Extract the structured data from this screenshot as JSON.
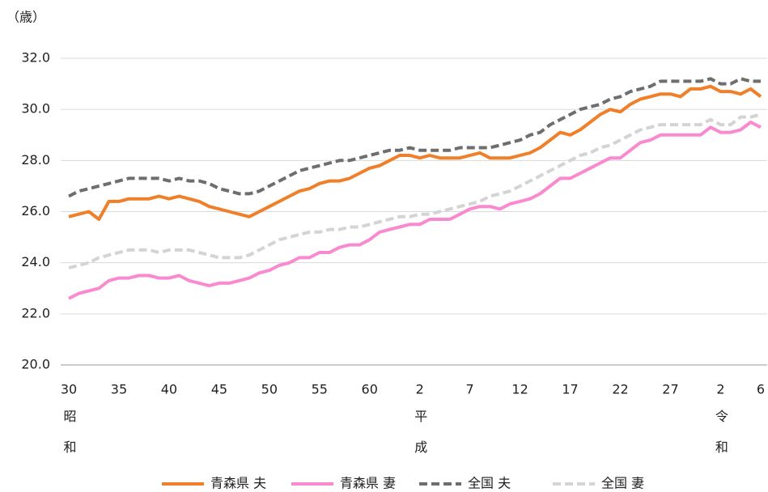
{
  "chart_data": {
    "type": "line",
    "y_unit": "（歳）",
    "categories": [
      "30",
      null,
      null,
      null,
      null,
      "35",
      null,
      null,
      null,
      null,
      "40",
      null,
      null,
      null,
      null,
      "45",
      null,
      null,
      null,
      null,
      "50",
      null,
      null,
      null,
      null,
      "55",
      null,
      null,
      null,
      null,
      "60",
      null,
      null,
      null,
      null,
      "2",
      null,
      null,
      null,
      null,
      "7",
      null,
      null,
      null,
      null,
      "12",
      null,
      null,
      null,
      null,
      "17",
      null,
      null,
      null,
      null,
      "22",
      null,
      null,
      null,
      null,
      "27",
      null,
      null,
      null,
      null,
      "2",
      null,
      null,
      null,
      "6"
    ],
    "era_labels": [
      "昭和",
      null,
      null,
      null,
      null,
      null,
      null,
      null,
      null,
      null,
      null,
      null,
      null,
      null,
      null,
      null,
      null,
      null,
      null,
      null,
      null,
      null,
      null,
      null,
      null,
      null,
      null,
      null,
      null,
      null,
      null,
      null,
      null,
      null,
      null,
      "平成",
      null,
      null,
      null,
      null,
      null,
      null,
      null,
      null,
      null,
      null,
      null,
      null,
      null,
      null,
      null,
      null,
      null,
      null,
      null,
      null,
      null,
      null,
      null,
      null,
      null,
      null,
      null,
      null,
      null,
      "令和",
      null,
      null,
      null,
      null
    ],
    "series": [
      {
        "name": "青森県 夫",
        "color": "#f07f2a",
        "dash": false,
        "values": [
          25.8,
          25.9,
          26.0,
          25.7,
          26.4,
          26.4,
          26.5,
          26.5,
          26.5,
          26.6,
          26.5,
          26.6,
          26.5,
          26.4,
          26.2,
          26.1,
          26.0,
          25.9,
          25.8,
          26.0,
          26.2,
          26.4,
          26.6,
          26.8,
          26.9,
          27.1,
          27.2,
          27.2,
          27.3,
          27.5,
          27.7,
          27.8,
          28.0,
          28.2,
          28.2,
          28.1,
          28.2,
          28.1,
          28.1,
          28.1,
          28.2,
          28.3,
          28.1,
          28.1,
          28.1,
          28.2,
          28.3,
          28.5,
          28.8,
          29.1,
          29.0,
          29.2,
          29.5,
          29.8,
          30.0,
          29.9,
          30.2,
          30.4,
          30.5,
          30.6,
          30.6,
          30.5,
          30.8,
          30.8,
          30.9,
          30.7,
          30.7,
          30.6,
          30.8,
          30.5
        ]
      },
      {
        "name": "青森県 妻",
        "color": "#f98ad0",
        "dash": false,
        "values": [
          22.6,
          22.8,
          22.9,
          23.0,
          23.3,
          23.4,
          23.4,
          23.5,
          23.5,
          23.4,
          23.4,
          23.5,
          23.3,
          23.2,
          23.1,
          23.2,
          23.2,
          23.3,
          23.4,
          23.6,
          23.7,
          23.9,
          24.0,
          24.2,
          24.2,
          24.4,
          24.4,
          24.6,
          24.7,
          24.7,
          24.9,
          25.2,
          25.3,
          25.4,
          25.5,
          25.5,
          25.7,
          25.7,
          25.7,
          25.9,
          26.1,
          26.2,
          26.2,
          26.1,
          26.3,
          26.4,
          26.5,
          26.7,
          27.0,
          27.3,
          27.3,
          27.5,
          27.7,
          27.9,
          28.1,
          28.1,
          28.4,
          28.7,
          28.8,
          29.0,
          29.0,
          29.0,
          29.0,
          29.0,
          29.3,
          29.1,
          29.1,
          29.2,
          29.5,
          29.3
        ]
      },
      {
        "name": "全国 夫",
        "color": "#6e6e6e",
        "dash": true,
        "values": [
          26.6,
          26.8,
          26.9,
          27.0,
          27.1,
          27.2,
          27.3,
          27.3,
          27.3,
          27.3,
          27.2,
          27.3,
          27.2,
          27.2,
          27.1,
          26.9,
          26.8,
          26.7,
          26.7,
          26.8,
          27.0,
          27.2,
          27.4,
          27.6,
          27.7,
          27.8,
          27.9,
          28.0,
          28.0,
          28.1,
          28.2,
          28.3,
          28.4,
          28.4,
          28.5,
          28.4,
          28.4,
          28.4,
          28.4,
          28.5,
          28.5,
          28.5,
          28.5,
          28.6,
          28.7,
          28.8,
          29.0,
          29.1,
          29.4,
          29.6,
          29.8,
          30.0,
          30.1,
          30.2,
          30.4,
          30.5,
          30.7,
          30.8,
          30.9,
          31.1,
          31.1,
          31.1,
          31.1,
          31.1,
          31.2,
          31.0,
          31.0,
          31.2,
          31.1,
          31.1
        ]
      },
      {
        "name": "全国 妻",
        "color": "#d4d4d4",
        "dash": true,
        "values": [
          23.8,
          23.9,
          24.0,
          24.2,
          24.3,
          24.4,
          24.5,
          24.5,
          24.5,
          24.4,
          24.5,
          24.5,
          24.5,
          24.4,
          24.3,
          24.2,
          24.2,
          24.2,
          24.3,
          24.5,
          24.7,
          24.9,
          25.0,
          25.1,
          25.2,
          25.2,
          25.3,
          25.3,
          25.4,
          25.4,
          25.5,
          25.6,
          25.7,
          25.8,
          25.8,
          25.9,
          25.9,
          26.0,
          26.1,
          26.2,
          26.3,
          26.4,
          26.6,
          26.7,
          26.8,
          27.0,
          27.2,
          27.4,
          27.6,
          27.8,
          28.0,
          28.2,
          28.3,
          28.5,
          28.6,
          28.8,
          29.0,
          29.2,
          29.3,
          29.4,
          29.4,
          29.4,
          29.4,
          29.4,
          29.6,
          29.4,
          29.4,
          29.7,
          29.7,
          29.8
        ]
      }
    ],
    "ylim": [
      20,
      32
    ],
    "yticks": [
      {
        "value": 20,
        "label": "20.0"
      },
      {
        "value": 22,
        "label": "22.0"
      },
      {
        "value": 24,
        "label": "24.0"
      },
      {
        "value": 26,
        "label": "26.0"
      },
      {
        "value": 28,
        "label": "28.0"
      },
      {
        "value": 30,
        "label": "30.0"
      },
      {
        "value": 32,
        "label": "32.0"
      }
    ],
    "grid": true,
    "legend": "bottom"
  }
}
